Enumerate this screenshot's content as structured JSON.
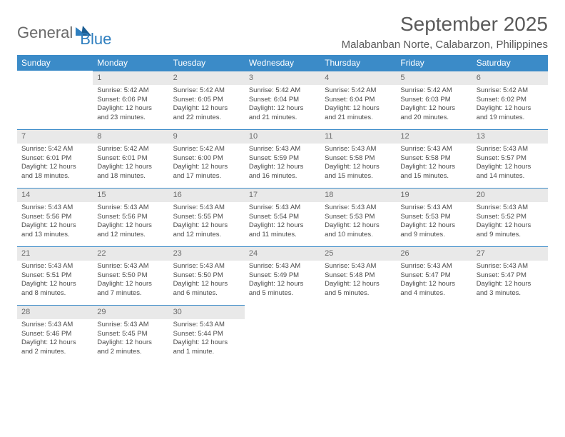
{
  "logo": {
    "part1": "General",
    "part2": "Blue"
  },
  "title": "September 2025",
  "location": "Malabanban Norte, Calabarzon, Philippines",
  "colors": {
    "header_bg": "#3b8bc8",
    "header_text": "#ffffff",
    "daynum_bg": "#e9e9e9",
    "daynum_border": "#3b8bc8",
    "body_text": "#4a4a4a",
    "title_text": "#5a5a5a",
    "logo_gray": "#6a6a6a",
    "logo_blue": "#2f7fbf"
  },
  "fonts": {
    "month_size_pt": 21,
    "location_size_pt": 11,
    "dayheader_size_pt": 9,
    "body_size_pt": 7
  },
  "day_headers": [
    "Sunday",
    "Monday",
    "Tuesday",
    "Wednesday",
    "Thursday",
    "Friday",
    "Saturday"
  ],
  "weeks": [
    [
      null,
      {
        "n": "1",
        "sr": "5:42 AM",
        "ss": "6:06 PM",
        "dl": "12 hours and 23 minutes."
      },
      {
        "n": "2",
        "sr": "5:42 AM",
        "ss": "6:05 PM",
        "dl": "12 hours and 22 minutes."
      },
      {
        "n": "3",
        "sr": "5:42 AM",
        "ss": "6:04 PM",
        "dl": "12 hours and 21 minutes."
      },
      {
        "n": "4",
        "sr": "5:42 AM",
        "ss": "6:04 PM",
        "dl": "12 hours and 21 minutes."
      },
      {
        "n": "5",
        "sr": "5:42 AM",
        "ss": "6:03 PM",
        "dl": "12 hours and 20 minutes."
      },
      {
        "n": "6",
        "sr": "5:42 AM",
        "ss": "6:02 PM",
        "dl": "12 hours and 19 minutes."
      }
    ],
    [
      {
        "n": "7",
        "sr": "5:42 AM",
        "ss": "6:01 PM",
        "dl": "12 hours and 18 minutes."
      },
      {
        "n": "8",
        "sr": "5:42 AM",
        "ss": "6:01 PM",
        "dl": "12 hours and 18 minutes."
      },
      {
        "n": "9",
        "sr": "5:42 AM",
        "ss": "6:00 PM",
        "dl": "12 hours and 17 minutes."
      },
      {
        "n": "10",
        "sr": "5:43 AM",
        "ss": "5:59 PM",
        "dl": "12 hours and 16 minutes."
      },
      {
        "n": "11",
        "sr": "5:43 AM",
        "ss": "5:58 PM",
        "dl": "12 hours and 15 minutes."
      },
      {
        "n": "12",
        "sr": "5:43 AM",
        "ss": "5:58 PM",
        "dl": "12 hours and 15 minutes."
      },
      {
        "n": "13",
        "sr": "5:43 AM",
        "ss": "5:57 PM",
        "dl": "12 hours and 14 minutes."
      }
    ],
    [
      {
        "n": "14",
        "sr": "5:43 AM",
        "ss": "5:56 PM",
        "dl": "12 hours and 13 minutes."
      },
      {
        "n": "15",
        "sr": "5:43 AM",
        "ss": "5:56 PM",
        "dl": "12 hours and 12 minutes."
      },
      {
        "n": "16",
        "sr": "5:43 AM",
        "ss": "5:55 PM",
        "dl": "12 hours and 12 minutes."
      },
      {
        "n": "17",
        "sr": "5:43 AM",
        "ss": "5:54 PM",
        "dl": "12 hours and 11 minutes."
      },
      {
        "n": "18",
        "sr": "5:43 AM",
        "ss": "5:53 PM",
        "dl": "12 hours and 10 minutes."
      },
      {
        "n": "19",
        "sr": "5:43 AM",
        "ss": "5:53 PM",
        "dl": "12 hours and 9 minutes."
      },
      {
        "n": "20",
        "sr": "5:43 AM",
        "ss": "5:52 PM",
        "dl": "12 hours and 9 minutes."
      }
    ],
    [
      {
        "n": "21",
        "sr": "5:43 AM",
        "ss": "5:51 PM",
        "dl": "12 hours and 8 minutes."
      },
      {
        "n": "22",
        "sr": "5:43 AM",
        "ss": "5:50 PM",
        "dl": "12 hours and 7 minutes."
      },
      {
        "n": "23",
        "sr": "5:43 AM",
        "ss": "5:50 PM",
        "dl": "12 hours and 6 minutes."
      },
      {
        "n": "24",
        "sr": "5:43 AM",
        "ss": "5:49 PM",
        "dl": "12 hours and 5 minutes."
      },
      {
        "n": "25",
        "sr": "5:43 AM",
        "ss": "5:48 PM",
        "dl": "12 hours and 5 minutes."
      },
      {
        "n": "26",
        "sr": "5:43 AM",
        "ss": "5:47 PM",
        "dl": "12 hours and 4 minutes."
      },
      {
        "n": "27",
        "sr": "5:43 AM",
        "ss": "5:47 PM",
        "dl": "12 hours and 3 minutes."
      }
    ],
    [
      {
        "n": "28",
        "sr": "5:43 AM",
        "ss": "5:46 PM",
        "dl": "12 hours and 2 minutes."
      },
      {
        "n": "29",
        "sr": "5:43 AM",
        "ss": "5:45 PM",
        "dl": "12 hours and 2 minutes."
      },
      {
        "n": "30",
        "sr": "5:43 AM",
        "ss": "5:44 PM",
        "dl": "12 hours and 1 minute."
      },
      null,
      null,
      null,
      null
    ]
  ],
  "labels": {
    "sunrise": "Sunrise:",
    "sunset": "Sunset:",
    "daylight": "Daylight:"
  }
}
